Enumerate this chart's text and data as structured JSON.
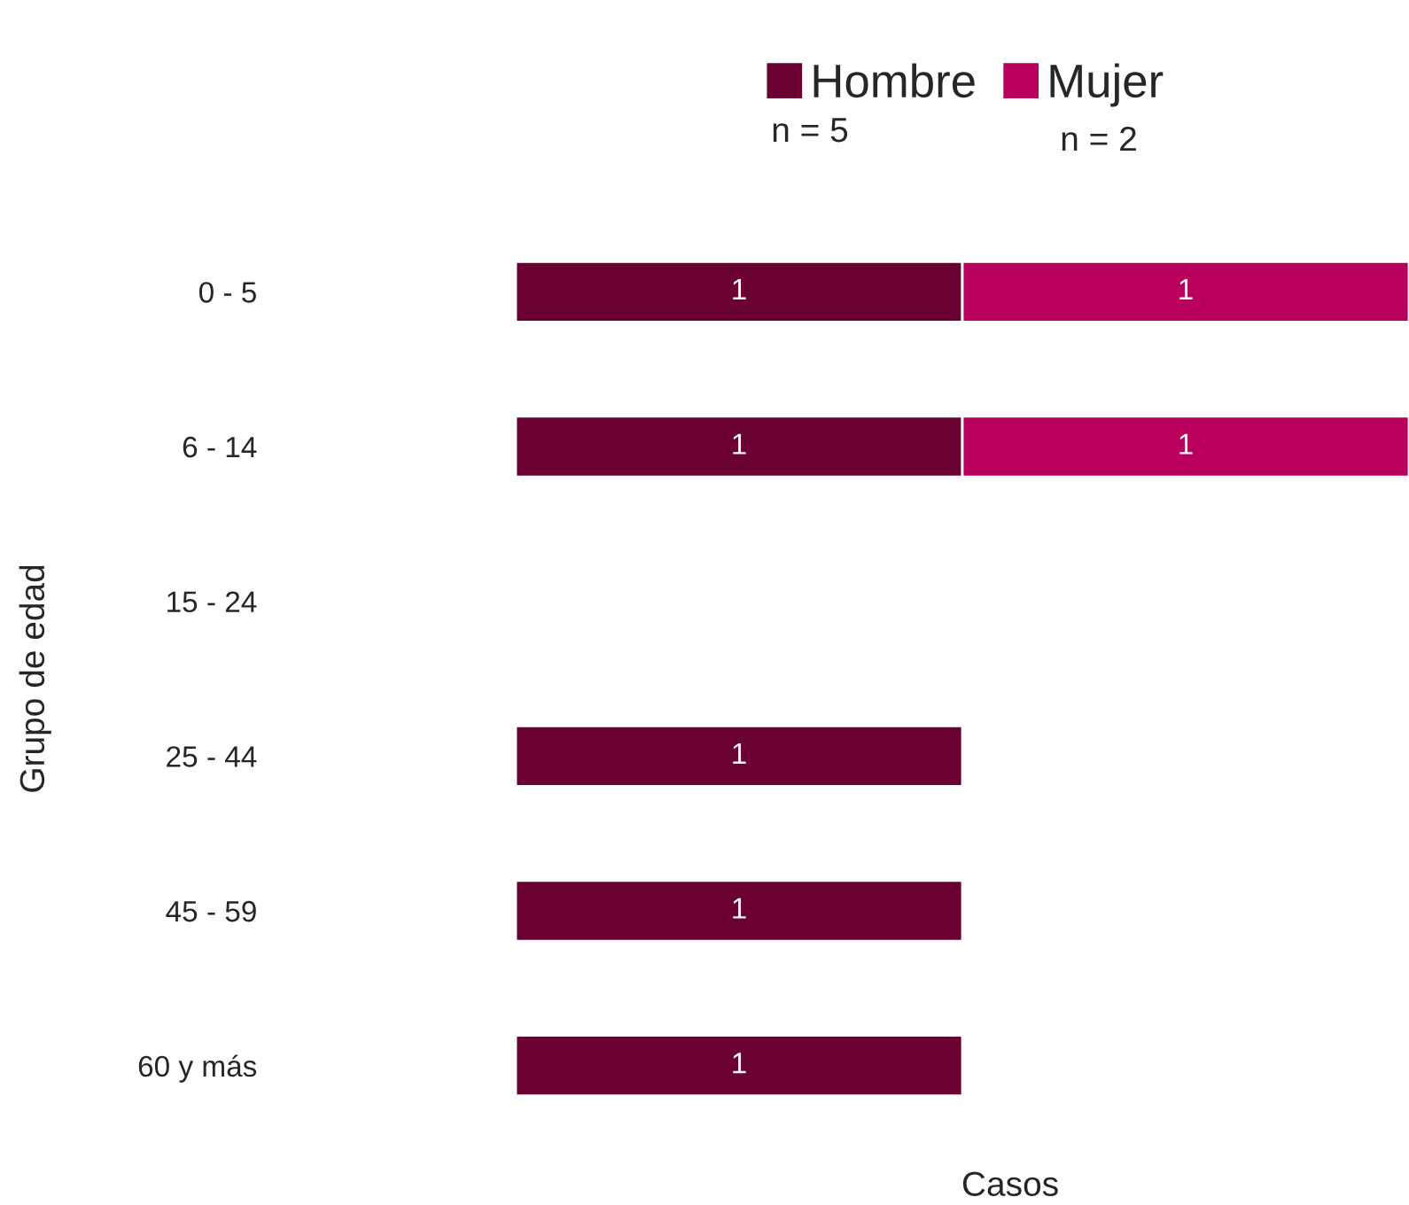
{
  "chart_data": {
    "type": "bar",
    "orientation": "horizontal",
    "stacked": true,
    "data_labels": true,
    "categories": [
      "0 - 5",
      "6 - 14",
      "15 - 24",
      "25 - 44",
      "45 - 59",
      "60 y más"
    ],
    "series": [
      {
        "name": "Hombre",
        "color": "#6b0033",
        "values": [
          1,
          1,
          null,
          1,
          1,
          1
        ]
      },
      {
        "name": "Mujer",
        "color": "#b8005c",
        "values": [
          1,
          1,
          null,
          null,
          null,
          null
        ]
      }
    ],
    "xlabel": "Casos",
    "ylabel": "Grupo de edad",
    "annotations": [
      "n = 5",
      "n = 2"
    ],
    "legend": "top",
    "grid": false,
    "tick_labels": "y"
  }
}
